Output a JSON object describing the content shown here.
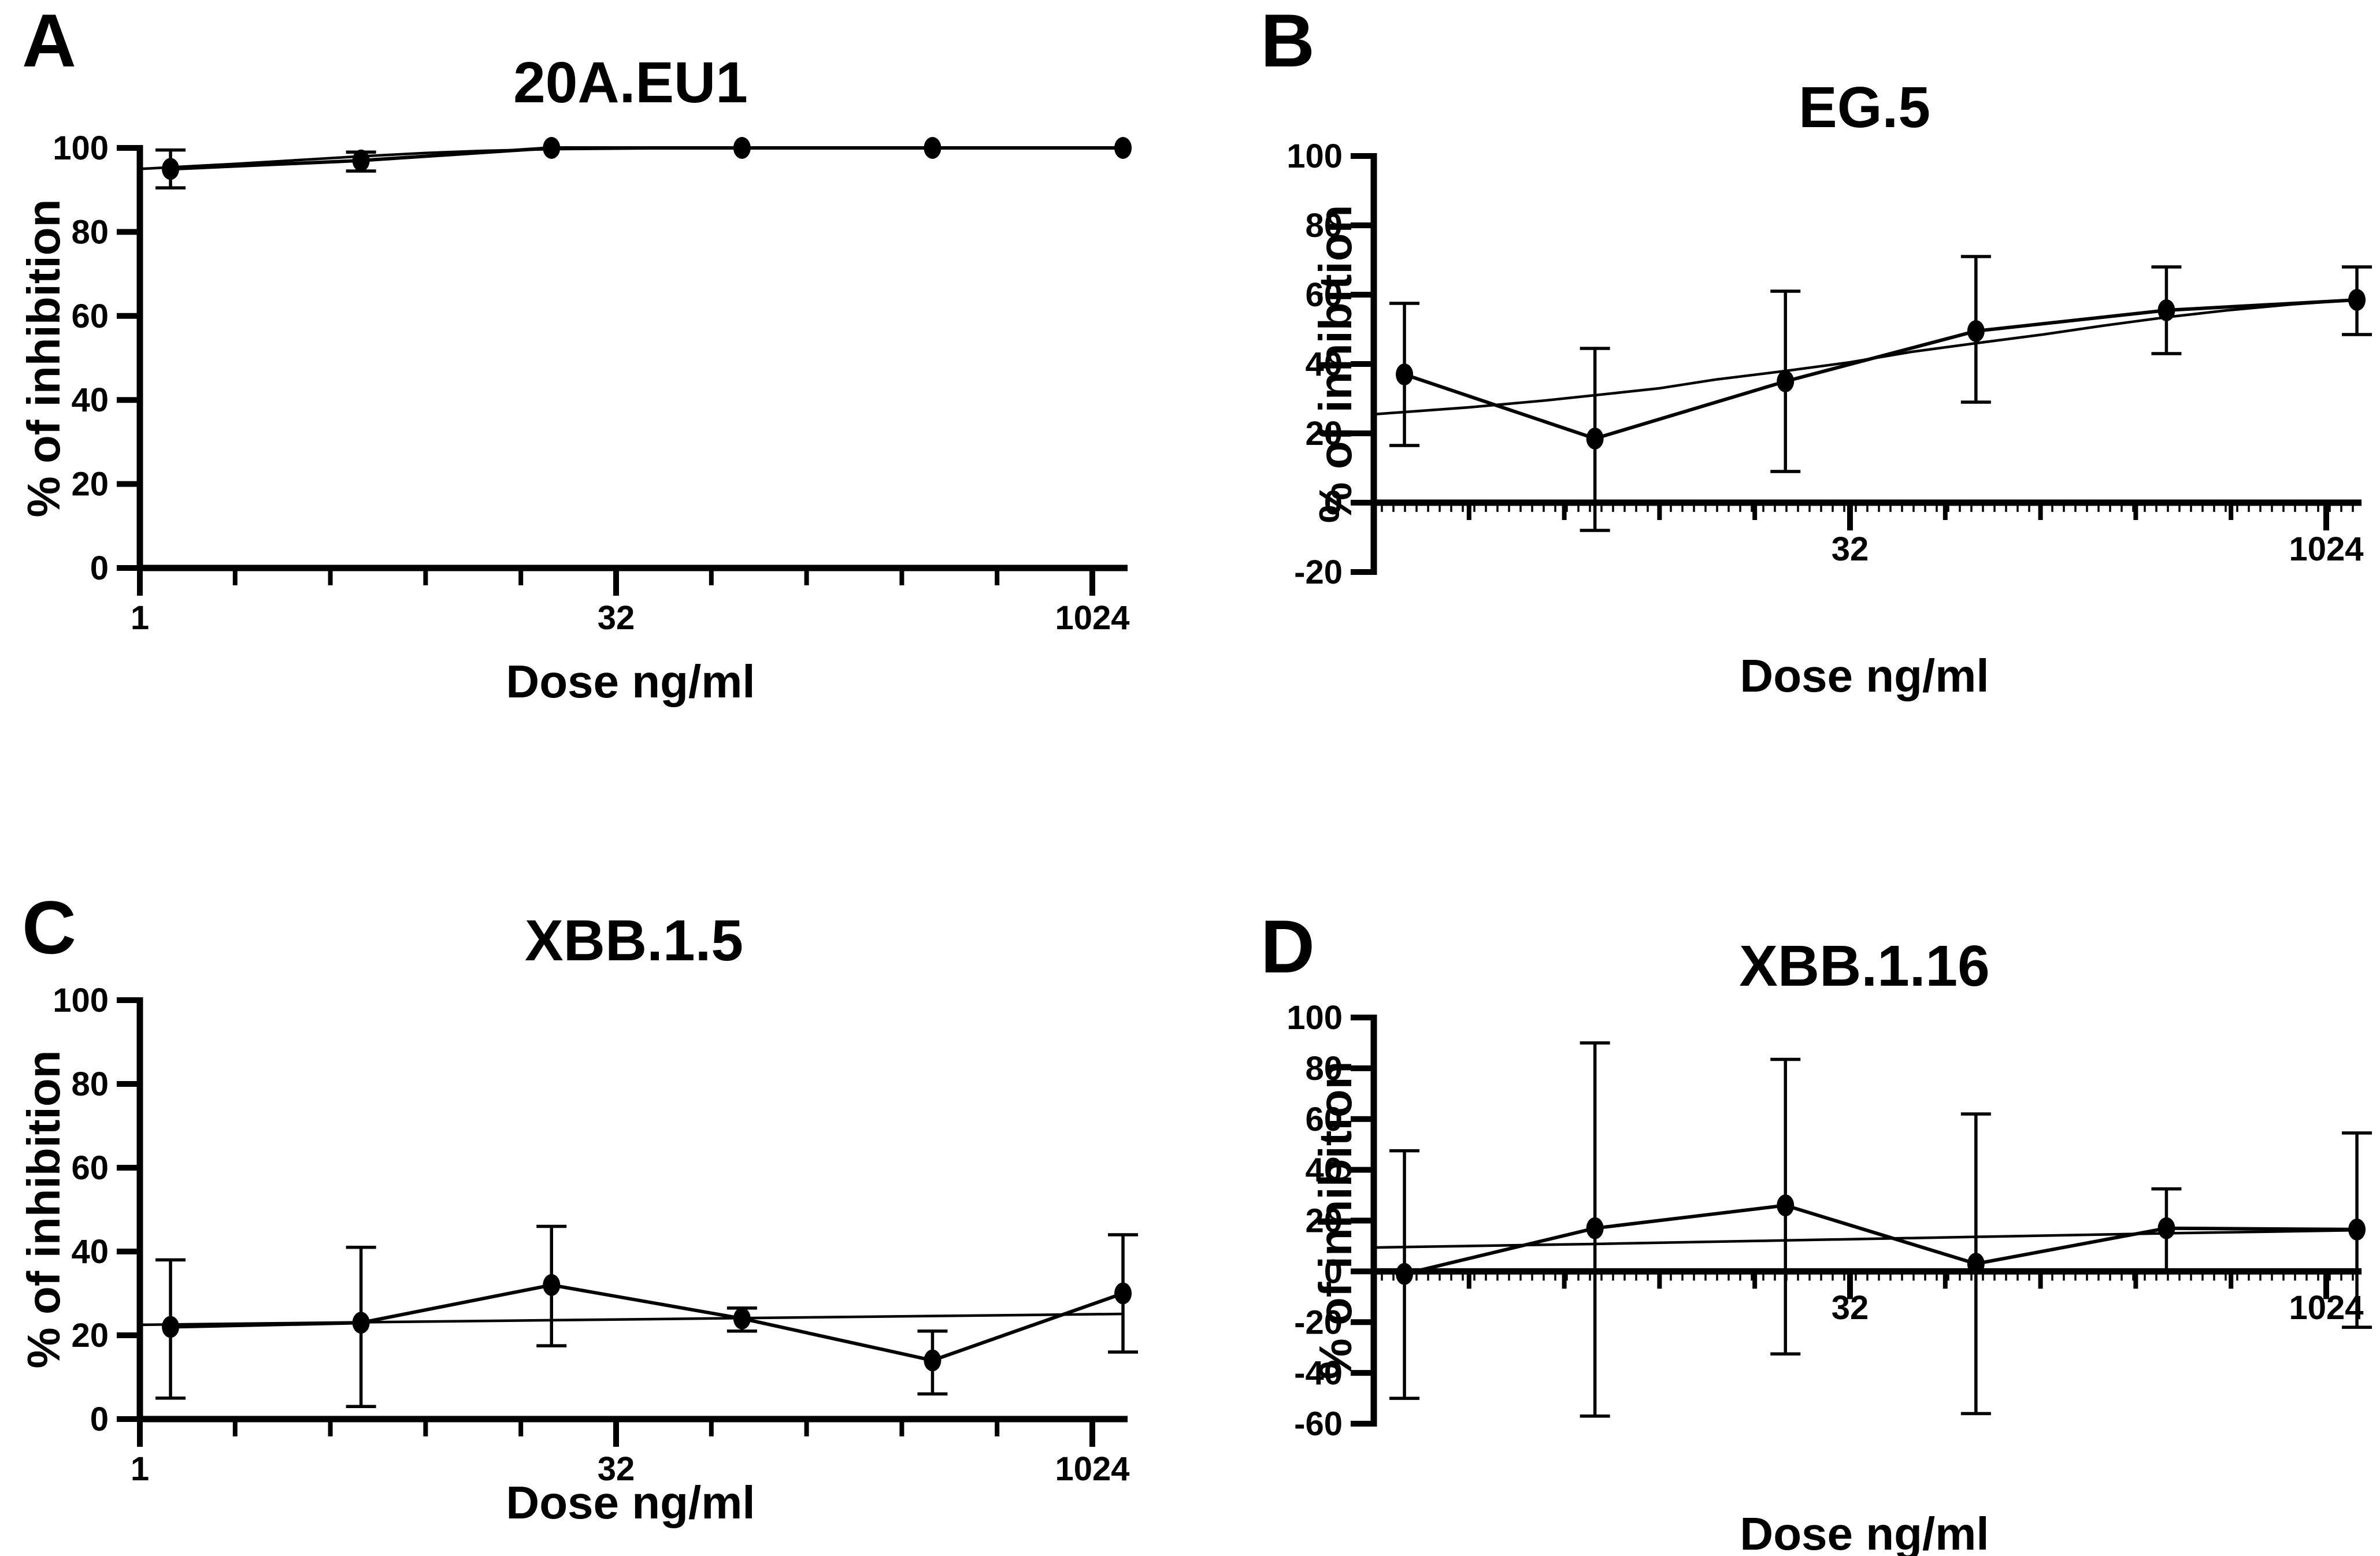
{
  "figure": {
    "background_color": "#ffffff",
    "ink_color": "#000000",
    "description_visible_text_only": true
  },
  "chart_data": [
    {
      "type": "line",
      "panel_label": "A",
      "title": "20A.EU1",
      "xlabel": "Dose ng/ml",
      "ylabel": "% of inhibition",
      "x_scale": "log2",
      "xlim": [
        1,
        1280
      ],
      "x_major_ticks": [
        1,
        32,
        1024
      ],
      "x_major_tick_labels": [
        "1",
        "32",
        "1024"
      ],
      "x_minor_ticks": [
        2,
        4,
        8,
        16,
        64,
        128,
        256,
        512
      ],
      "ylim": [
        0,
        100
      ],
      "y_ticks": [
        0,
        20,
        40,
        60,
        80,
        100
      ],
      "x_axis_at_y": 0,
      "grid": "off",
      "legend": "none",
      "series": {
        "doses": [
          1.25,
          5,
          20,
          80,
          320,
          1280
        ],
        "mean": [
          95,
          97,
          100,
          100,
          100,
          100
        ],
        "err_lo": [
          90.5,
          94.5,
          100,
          100,
          100,
          100
        ],
        "err_hi": [
          99.5,
          99,
          100,
          100,
          100,
          100
        ]
      },
      "fit_curve": {
        "x": [
          1,
          2,
          3.5,
          5,
          8,
          12,
          20,
          40,
          80,
          320,
          1280
        ],
        "y": [
          95,
          96.2,
          97.3,
          98,
          98.8,
          99.3,
          99.7,
          99.9,
          100,
          100,
          100
        ]
      }
    },
    {
      "type": "line",
      "panel_label": "B",
      "title": "EG.5",
      "xlabel": "Dose ng/ml",
      "ylabel": "% of inhibition",
      "x_scale": "log2",
      "xlim": [
        1,
        1280
      ],
      "x_major_ticks": [
        32,
        1024
      ],
      "x_major_tick_labels": [
        "32",
        "1024"
      ],
      "x_minor_ticks": [
        2,
        4,
        8,
        16,
        64,
        128,
        256,
        512
      ],
      "ylim": [
        -20,
        100
      ],
      "y_ticks": [
        -20,
        0,
        20,
        40,
        60,
        80,
        100
      ],
      "x_axis_at_y": 0,
      "grid": "off",
      "legend": "none",
      "series": {
        "doses": [
          1.25,
          5,
          20,
          80,
          320,
          1280
        ],
        "mean": [
          37,
          18.5,
          35,
          49.5,
          55.5,
          58.5
        ],
        "err_lo": [
          16.5,
          -8,
          9,
          29,
          43,
          48.5
        ],
        "err_hi": [
          57.5,
          44.5,
          61,
          71,
          68,
          68
        ]
      },
      "fit_curve": {
        "x": [
          1,
          2,
          3.5,
          5,
          8,
          12,
          20,
          32,
          50,
          80,
          130,
          200,
          320,
          500,
          800,
          1280
        ],
        "y": [
          25.5,
          27.5,
          29.5,
          31,
          33,
          35.5,
          38,
          40.5,
          43.5,
          46,
          48.5,
          51,
          53.5,
          55.5,
          57.2,
          58.5
        ]
      }
    },
    {
      "type": "line",
      "panel_label": "C",
      "title": "XBB.1.5",
      "xlabel": "Dose ng/ml",
      "ylabel": "% of inhibition",
      "x_scale": "log2",
      "xlim": [
        1,
        1280
      ],
      "x_major_ticks": [
        1,
        32,
        1024
      ],
      "x_major_tick_labels": [
        "1",
        "32",
        "1024"
      ],
      "x_minor_ticks": [
        2,
        4,
        8,
        16,
        64,
        128,
        256,
        512
      ],
      "ylim": [
        0,
        100
      ],
      "y_ticks": [
        0,
        20,
        40,
        60,
        80,
        100
      ],
      "x_axis_at_y": 0,
      "grid": "off",
      "legend": "none",
      "series": {
        "doses": [
          1.25,
          5,
          20,
          80,
          320,
          1280
        ],
        "mean": [
          22,
          23,
          32,
          24,
          14,
          30
        ],
        "err_lo": [
          5,
          3,
          17.5,
          21,
          6,
          16
        ],
        "err_hi": [
          38,
          41,
          46,
          26.5,
          21,
          44
        ]
      },
      "fit_curve": {
        "x": [
          1,
          5,
          20,
          80,
          320,
          1280
        ],
        "y": [
          22.5,
          23.1,
          23.6,
          24.1,
          24.6,
          25.1
        ]
      }
    },
    {
      "type": "line",
      "panel_label": "D",
      "title": "XBB.1.16",
      "xlabel": "Dose ng/ml",
      "ylabel": "% of inhibition",
      "x_scale": "log2",
      "xlim": [
        1,
        1280
      ],
      "x_major_ticks": [
        32,
        1024
      ],
      "x_major_tick_labels": [
        "32",
        "1024"
      ],
      "x_minor_ticks": [
        2,
        4,
        8,
        16,
        64,
        128,
        256,
        512
      ],
      "ylim": [
        -60,
        100
      ],
      "y_ticks": [
        -60,
        -40,
        -20,
        0,
        20,
        40,
        60,
        80,
        100
      ],
      "x_axis_at_y": 0,
      "grid": "off",
      "legend": "none",
      "series": {
        "doses": [
          1.25,
          5,
          20,
          80,
          320,
          1280
        ],
        "mean": [
          -1,
          17,
          26,
          3,
          17,
          16.5
        ],
        "err_lo": [
          -50,
          -57,
          -32.5,
          -56,
          0,
          -22
        ],
        "err_hi": [
          47.5,
          90,
          83.5,
          62,
          32.5,
          54.5
        ]
      },
      "fit_curve": {
        "x": [
          1,
          5,
          20,
          80,
          320,
          1280
        ],
        "y": [
          9.4,
          10.8,
          12.2,
          13.6,
          15,
          16.2
        ]
      }
    }
  ]
}
